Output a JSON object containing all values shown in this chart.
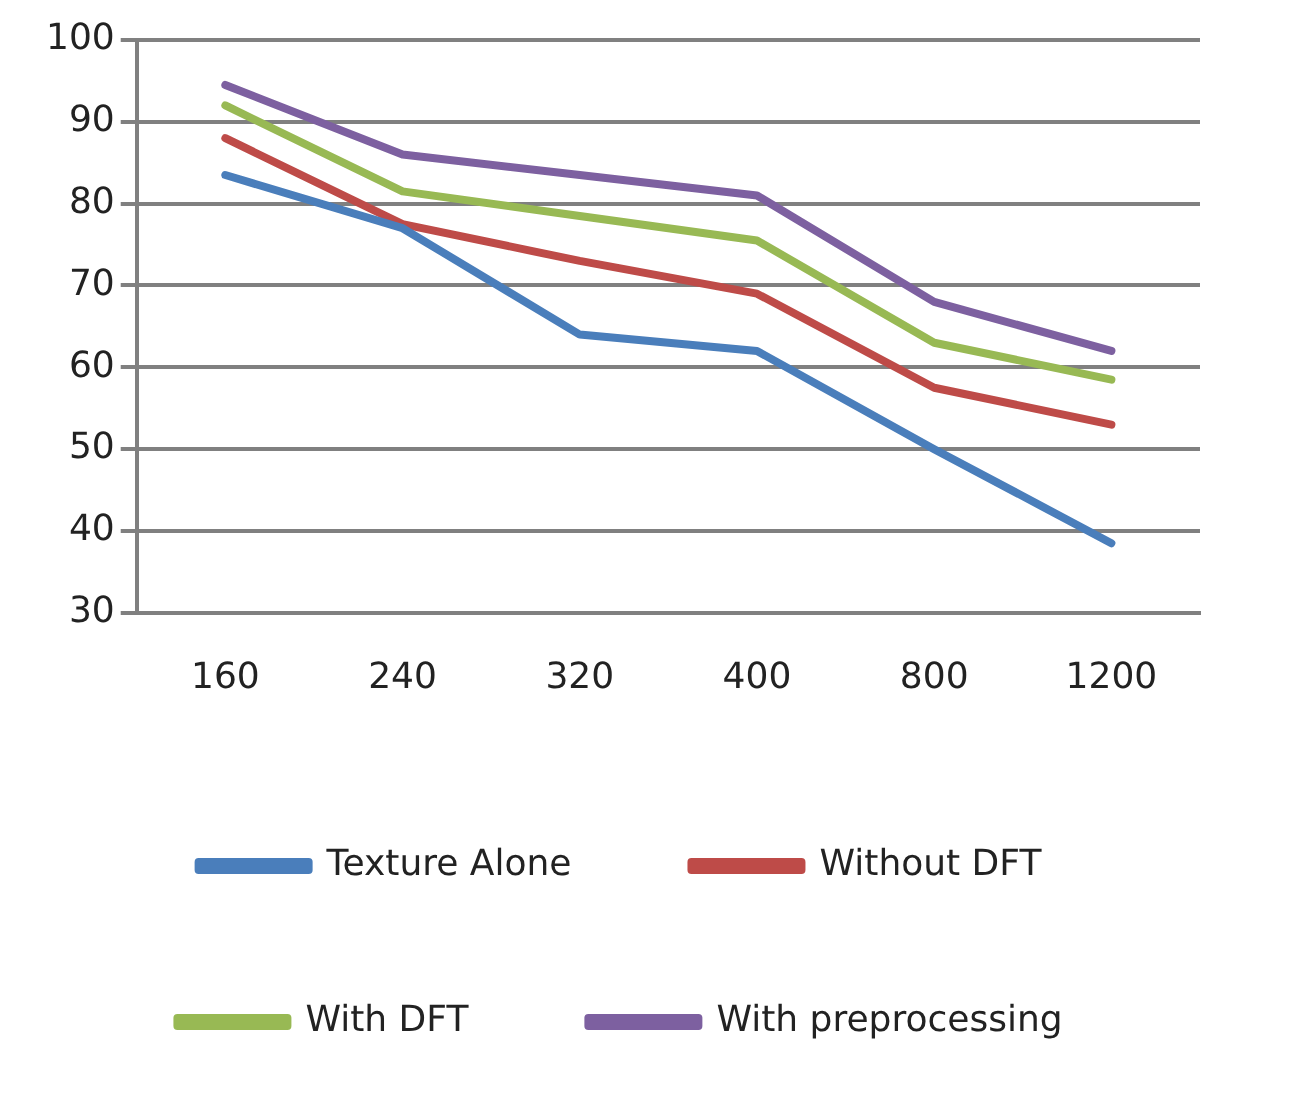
{
  "chart_data": {
    "type": "line",
    "categories": [
      "160",
      "240",
      "320",
      "400",
      "800",
      "1200"
    ],
    "series": [
      {
        "name": "Texture Alone",
        "color": "#4a7ebb",
        "values": [
          83.5,
          77,
          64,
          62,
          50,
          38.5
        ]
      },
      {
        "name": "Without DFT",
        "color": "#be4b48",
        "values": [
          88,
          77.5,
          73,
          69,
          57.5,
          53
        ]
      },
      {
        "name": "With DFT",
        "color": "#98b954",
        "values": [
          92,
          81.5,
          78.5,
          75.5,
          63,
          58.5
        ]
      },
      {
        "name": "With preprocessing",
        "color": "#7d60a0",
        "values": [
          94.5,
          86,
          83.5,
          81,
          68,
          62
        ]
      }
    ],
    "ylim": [
      30,
      100
    ],
    "yticks": [
      30,
      40,
      50,
      60,
      70,
      80,
      90,
      100
    ],
    "grid": "y",
    "legend": "bottom",
    "marker": "none",
    "line_style": "solid"
  }
}
